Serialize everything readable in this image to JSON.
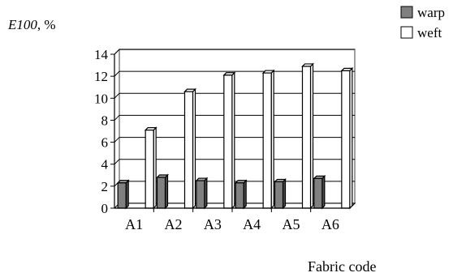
{
  "chart_data": {
    "type": "bar",
    "ylabel_italic": "E100",
    "ylabel_suffix": ", %",
    "xlabel": "Fabric code",
    "categories": [
      "A1",
      "A2",
      "A3",
      "A4",
      "A5",
      "A6"
    ],
    "ylim": [
      0,
      14
    ],
    "yticks": [
      0,
      2,
      4,
      6,
      8,
      10,
      12,
      14
    ],
    "grid": true,
    "legend_position": "top-right",
    "series": [
      {
        "name": "warp",
        "values": [
          2.3,
          2.8,
          2.5,
          2.3,
          2.4,
          2.7
        ],
        "color": "#808080"
      },
      {
        "name": "weft",
        "values": [
          7.1,
          10.6,
          12.1,
          12.3,
          12.9,
          12.5
        ],
        "color": "#ffffff"
      }
    ]
  }
}
